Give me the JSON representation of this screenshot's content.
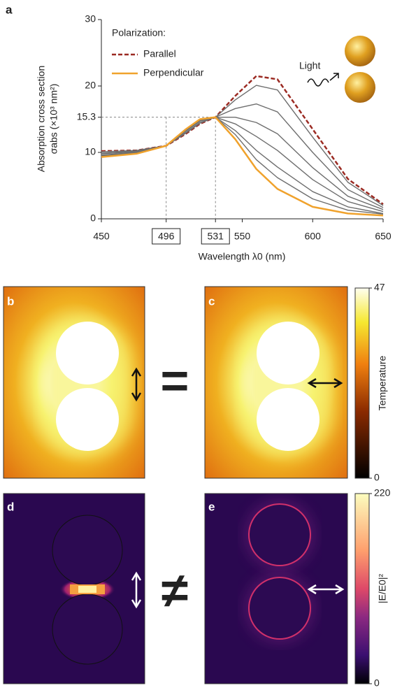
{
  "chart_data": {
    "type": "line",
    "panel": "a",
    "x": [
      450,
      475,
      496,
      510,
      520,
      531,
      545,
      560,
      575,
      600,
      625,
      650
    ],
    "series": [
      {
        "name": "Parallel",
        "color": "#9b2a22",
        "dash": true,
        "values": [
          10.2,
          10.3,
          11,
          12.8,
          14.3,
          15.3,
          18.5,
          21.5,
          21,
          13.5,
          6,
          2.2
        ]
      },
      {
        "color": "#6e6e6e",
        "values": [
          10.1,
          10.3,
          11,
          12.9,
          14.4,
          15.3,
          17.9,
          20.1,
          19.4,
          12.3,
          5.5,
          2.0
        ]
      },
      {
        "color": "#6e6e6e",
        "values": [
          9.9,
          10.2,
          11,
          13.0,
          14.5,
          15.3,
          16.6,
          17.3,
          16.1,
          10.0,
          4.4,
          1.7
        ]
      },
      {
        "color": "#6e6e6e",
        "values": [
          9.8,
          10.1,
          11,
          13.2,
          14.7,
          15.3,
          15.3,
          14.5,
          12.8,
          7.7,
          3.4,
          1.4
        ]
      },
      {
        "color": "#6e6e6e",
        "values": [
          9.6,
          10.0,
          11,
          13.3,
          14.8,
          15.3,
          14.3,
          12.4,
          10.3,
          5.9,
          2.6,
          1.1
        ]
      },
      {
        "color": "#6e6e6e",
        "values": [
          9.5,
          9.9,
          11,
          13.4,
          14.9,
          15.3,
          13.3,
          10.3,
          7.8,
          4.1,
          1.8,
          0.8
        ]
      },
      {
        "color": "#6e6e6e",
        "values": [
          9.4,
          9.9,
          11,
          13.4,
          14.9,
          15.3,
          12.7,
          8.9,
          6.2,
          3.0,
          1.3,
          0.7
        ]
      },
      {
        "name": "Perpendicular",
        "color": "#f0a22c",
        "values": [
          9.3,
          9.8,
          11,
          13.5,
          15,
          15.3,
          12,
          7.5,
          4.5,
          1.8,
          0.8,
          0.5
        ]
      }
    ],
    "xlim": [
      450,
      650
    ],
    "xticks": [
      450,
      496,
      531,
      550,
      600,
      650
    ],
    "boxed_xticks": [
      496,
      531
    ],
    "ylim": [
      0,
      30
    ],
    "yticks": [
      0,
      10,
      15.3,
      20,
      30
    ],
    "reference_y": 15.3,
    "xlabel": "Wavelength λ0 (nm)",
    "ylabel": [
      "Absorption cross section",
      "σabs (×10³ nm²)"
    ],
    "legend_title": "Polarization:",
    "annotation": "Light"
  },
  "panels": {
    "labels": [
      "b",
      "c",
      "d",
      "e"
    ],
    "symbols": [
      "=",
      "≠"
    ]
  },
  "colorbars": [
    {
      "label": "Temperature",
      "ticks": [
        0,
        47
      ]
    },
    {
      "label": "|E/E0|²",
      "ticks": [
        0,
        220
      ]
    }
  ]
}
